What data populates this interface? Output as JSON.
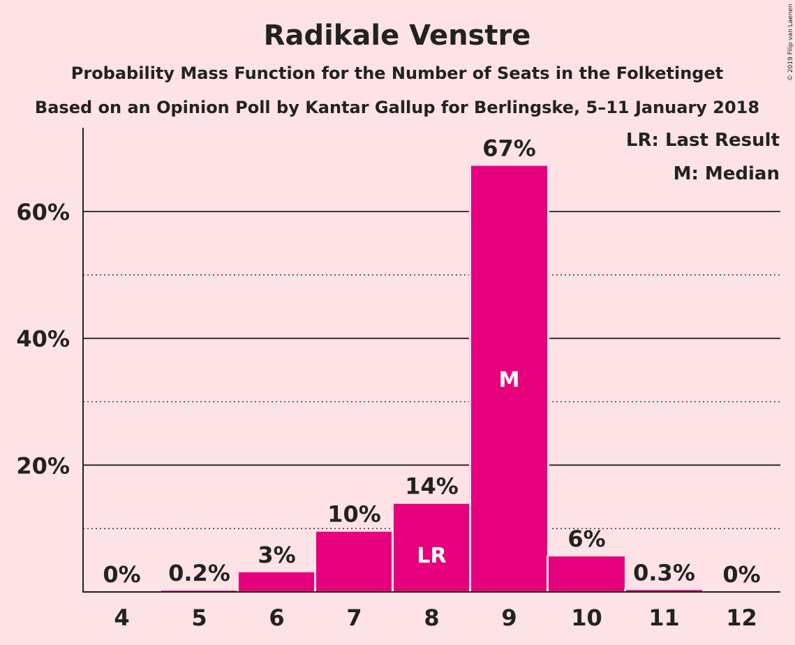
{
  "chart_data": {
    "type": "bar",
    "title": "Radikale Venstre",
    "subtitle": "Probability Mass Function for the Number of Seats in the Folketinget",
    "subtitle2": "Based on an Opinion Poll by Kantar Gallup for Berlingske, 5–11 January 2018",
    "categories": [
      "4",
      "5",
      "6",
      "7",
      "8",
      "9",
      "10",
      "11",
      "12"
    ],
    "values": [
      0,
      0.2,
      3.1,
      9.5,
      13.9,
      67.2,
      5.6,
      0.3,
      0
    ],
    "value_labels": [
      "0%",
      "0.2%",
      "3%",
      "10%",
      "14%",
      "67%",
      "6%",
      "0.3%",
      "0%"
    ],
    "bar_annotations": [
      "",
      "",
      "",
      "",
      "LR",
      "M",
      "",
      "",
      ""
    ],
    "ylim": [
      0,
      72
    ],
    "yticks": [
      20,
      40,
      60
    ],
    "ytick_labels": [
      "20%",
      "40%",
      "60%"
    ],
    "minor_gridlines": [
      10,
      30,
      50
    ],
    "legend": [
      "LR: Last Result",
      "M: Median"
    ],
    "legend_position": "top-right",
    "bar_color": "#e6007e",
    "copyright": "© 2019 Filip van Laenen"
  }
}
